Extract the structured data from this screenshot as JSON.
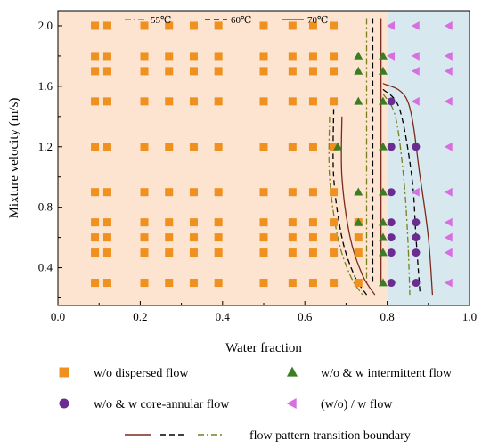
{
  "chart_data": {
    "type": "scatter",
    "xlabel": "Water fraction",
    "ylabel": "Mixture velocity (m/s)",
    "xlim": [
      0.0,
      1.0
    ],
    "ylim": [
      0.15,
      2.1
    ],
    "x_ticks": [
      "0.0",
      "0.2",
      "0.4",
      "0.6",
      "0.8",
      "1.0"
    ],
    "y_ticks": [
      "0.4",
      "0.8",
      "1.2",
      "1.6",
      "2.0"
    ],
    "regions": [
      {
        "from": 0.0,
        "to": 0.8,
        "color": "#fce4d0"
      },
      {
        "from": 0.8,
        "to": 1.0,
        "color": "#d7e9ee"
      }
    ],
    "series": [
      {
        "name": "w/o dispersed flow",
        "marker": "square",
        "color": "#f0901e",
        "points": [
          [
            0.09,
            2.0
          ],
          [
            0.12,
            2.0
          ],
          [
            0.21,
            2.0
          ],
          [
            0.27,
            2.0
          ],
          [
            0.33,
            2.0
          ],
          [
            0.39,
            2.0
          ],
          [
            0.5,
            2.0
          ],
          [
            0.57,
            2.0
          ],
          [
            0.62,
            2.0
          ],
          [
            0.67,
            2.0
          ],
          [
            0.09,
            1.8
          ],
          [
            0.12,
            1.8
          ],
          [
            0.21,
            1.8
          ],
          [
            0.27,
            1.8
          ],
          [
            0.33,
            1.8
          ],
          [
            0.39,
            1.8
          ],
          [
            0.5,
            1.8
          ],
          [
            0.57,
            1.8
          ],
          [
            0.62,
            1.8
          ],
          [
            0.67,
            1.8
          ],
          [
            0.09,
            1.7
          ],
          [
            0.12,
            1.7
          ],
          [
            0.21,
            1.7
          ],
          [
            0.27,
            1.7
          ],
          [
            0.33,
            1.7
          ],
          [
            0.39,
            1.7
          ],
          [
            0.5,
            1.7
          ],
          [
            0.57,
            1.7
          ],
          [
            0.62,
            1.7
          ],
          [
            0.67,
            1.7
          ],
          [
            0.09,
            1.5
          ],
          [
            0.12,
            1.5
          ],
          [
            0.21,
            1.5
          ],
          [
            0.27,
            1.5
          ],
          [
            0.33,
            1.5
          ],
          [
            0.39,
            1.5
          ],
          [
            0.5,
            1.5
          ],
          [
            0.57,
            1.5
          ],
          [
            0.62,
            1.5
          ],
          [
            0.67,
            1.5
          ],
          [
            0.09,
            1.2
          ],
          [
            0.12,
            1.2
          ],
          [
            0.21,
            1.2
          ],
          [
            0.27,
            1.2
          ],
          [
            0.33,
            1.2
          ],
          [
            0.39,
            1.2
          ],
          [
            0.5,
            1.2
          ],
          [
            0.57,
            1.2
          ],
          [
            0.62,
            1.2
          ],
          [
            0.67,
            1.2
          ],
          [
            0.09,
            0.9
          ],
          [
            0.12,
            0.9
          ],
          [
            0.21,
            0.9
          ],
          [
            0.27,
            0.9
          ],
          [
            0.33,
            0.9
          ],
          [
            0.39,
            0.9
          ],
          [
            0.5,
            0.9
          ],
          [
            0.57,
            0.9
          ],
          [
            0.62,
            0.9
          ],
          [
            0.67,
            0.9
          ],
          [
            0.09,
            0.7
          ],
          [
            0.12,
            0.7
          ],
          [
            0.21,
            0.7
          ],
          [
            0.27,
            0.7
          ],
          [
            0.33,
            0.7
          ],
          [
            0.39,
            0.7
          ],
          [
            0.5,
            0.7
          ],
          [
            0.57,
            0.7
          ],
          [
            0.62,
            0.7
          ],
          [
            0.67,
            0.7
          ],
          [
            0.73,
            0.7
          ],
          [
            0.09,
            0.6
          ],
          [
            0.12,
            0.6
          ],
          [
            0.21,
            0.6
          ],
          [
            0.27,
            0.6
          ],
          [
            0.33,
            0.6
          ],
          [
            0.39,
            0.6
          ],
          [
            0.5,
            0.6
          ],
          [
            0.57,
            0.6
          ],
          [
            0.62,
            0.6
          ],
          [
            0.67,
            0.6
          ],
          [
            0.73,
            0.6
          ],
          [
            0.09,
            0.5
          ],
          [
            0.12,
            0.5
          ],
          [
            0.21,
            0.5
          ],
          [
            0.27,
            0.5
          ],
          [
            0.33,
            0.5
          ],
          [
            0.39,
            0.5
          ],
          [
            0.5,
            0.5
          ],
          [
            0.57,
            0.5
          ],
          [
            0.62,
            0.5
          ],
          [
            0.67,
            0.5
          ],
          [
            0.73,
            0.5
          ],
          [
            0.09,
            0.3
          ],
          [
            0.12,
            0.3
          ],
          [
            0.21,
            0.3
          ],
          [
            0.27,
            0.3
          ],
          [
            0.33,
            0.3
          ],
          [
            0.39,
            0.3
          ],
          [
            0.5,
            0.3
          ],
          [
            0.57,
            0.3
          ],
          [
            0.62,
            0.3
          ],
          [
            0.67,
            0.3
          ],
          [
            0.73,
            0.3
          ]
        ]
      },
      {
        "name": "w/o & w intermittent flow",
        "marker": "triangle-up",
        "color": "#3a7d22",
        "points": [
          [
            0.73,
            1.8
          ],
          [
            0.79,
            1.8
          ],
          [
            0.73,
            1.7
          ],
          [
            0.79,
            1.7
          ],
          [
            0.73,
            1.5
          ],
          [
            0.79,
            1.5
          ],
          [
            0.68,
            1.2
          ],
          [
            0.79,
            1.2
          ],
          [
            0.73,
            0.9
          ],
          [
            0.79,
            0.9
          ],
          [
            0.73,
            0.7
          ],
          [
            0.79,
            0.7
          ],
          [
            0.79,
            0.6
          ],
          [
            0.79,
            0.5
          ],
          [
            0.79,
            0.3
          ]
        ]
      },
      {
        "name": "w/o & w core-annular flow",
        "marker": "circle",
        "color": "#6a2c91",
        "points": [
          [
            0.81,
            1.5
          ],
          [
            0.81,
            1.2
          ],
          [
            0.87,
            1.2
          ],
          [
            0.81,
            0.9
          ],
          [
            0.81,
            0.7
          ],
          [
            0.87,
            0.7
          ],
          [
            0.81,
            0.6
          ],
          [
            0.87,
            0.6
          ],
          [
            0.81,
            0.5
          ],
          [
            0.87,
            0.5
          ],
          [
            0.81,
            0.3
          ],
          [
            0.87,
            0.3
          ]
        ]
      },
      {
        "name": "(w/o) / w flow",
        "marker": "triangle-left",
        "color": "#d86fe0",
        "points": [
          [
            0.81,
            2.0
          ],
          [
            0.87,
            2.0
          ],
          [
            0.95,
            2.0
          ],
          [
            0.81,
            1.8
          ],
          [
            0.87,
            1.8
          ],
          [
            0.95,
            1.8
          ],
          [
            0.87,
            1.7
          ],
          [
            0.95,
            1.7
          ],
          [
            0.87,
            1.5
          ],
          [
            0.95,
            1.5
          ],
          [
            0.95,
            1.2
          ],
          [
            0.87,
            0.9
          ],
          [
            0.95,
            0.9
          ],
          [
            0.95,
            0.7
          ],
          [
            0.95,
            0.6
          ],
          [
            0.95,
            0.5
          ],
          [
            0.95,
            0.3
          ]
        ]
      }
    ],
    "boundaries": [
      {
        "name": "55℃",
        "color": "#7a7f1e",
        "dash": "dashdot",
        "curves": [
          [
            [
              0.66,
              1.4
            ],
            [
              0.66,
              1.0
            ],
            [
              0.68,
              0.6
            ],
            [
              0.71,
              0.35
            ],
            [
              0.74,
              0.22
            ]
          ],
          [
            [
              0.75,
              2.05
            ],
            [
              0.75,
              0.3
            ]
          ],
          [
            [
              0.79,
              1.55
            ],
            [
              0.82,
              1.4
            ],
            [
              0.84,
              1.0
            ],
            [
              0.85,
              0.6
            ],
            [
              0.855,
              0.22
            ]
          ]
        ]
      },
      {
        "name": "60℃",
        "color": "#000000",
        "dash": "dashed",
        "curves": [
          [
            [
              0.67,
              1.45
            ],
            [
              0.67,
              1.0
            ],
            [
              0.69,
              0.6
            ],
            [
              0.72,
              0.35
            ],
            [
              0.75,
              0.22
            ]
          ],
          [
            [
              0.765,
              2.05
            ],
            [
              0.765,
              0.3
            ]
          ],
          [
            [
              0.79,
              1.58
            ],
            [
              0.83,
              1.45
            ],
            [
              0.86,
              1.0
            ],
            [
              0.87,
              0.6
            ],
            [
              0.88,
              0.22
            ]
          ]
        ]
      },
      {
        "name": "70℃",
        "color": "#7b2a1d",
        "dash": "solid",
        "curves": [
          [
            [
              0.69,
              1.4
            ],
            [
              0.69,
              1.0
            ],
            [
              0.71,
              0.6
            ],
            [
              0.74,
              0.35
            ],
            [
              0.77,
              0.22
            ]
          ],
          [
            [
              0.785,
              2.05
            ],
            [
              0.785,
              0.3
            ]
          ],
          [
            [
              0.79,
              1.62
            ],
            [
              0.85,
              1.5
            ],
            [
              0.88,
              1.0
            ],
            [
              0.9,
              0.6
            ],
            [
              0.91,
              0.22
            ]
          ]
        ]
      }
    ],
    "bottom_legend": {
      "items": [
        {
          "label": "w/o dispersed flow",
          "marker": "square",
          "color": "#f0901e"
        },
        {
          "label": "w/o & w intermittent flow",
          "marker": "triangle-up",
          "color": "#3a7d22"
        },
        {
          "label": "w/o & w core-annular flow",
          "marker": "circle",
          "color": "#6a2c91"
        },
        {
          "label": "(w/o) / w flow",
          "marker": "triangle-left",
          "color": "#d86fe0"
        }
      ],
      "boundary_label": "flow pattern transition boundary"
    }
  }
}
